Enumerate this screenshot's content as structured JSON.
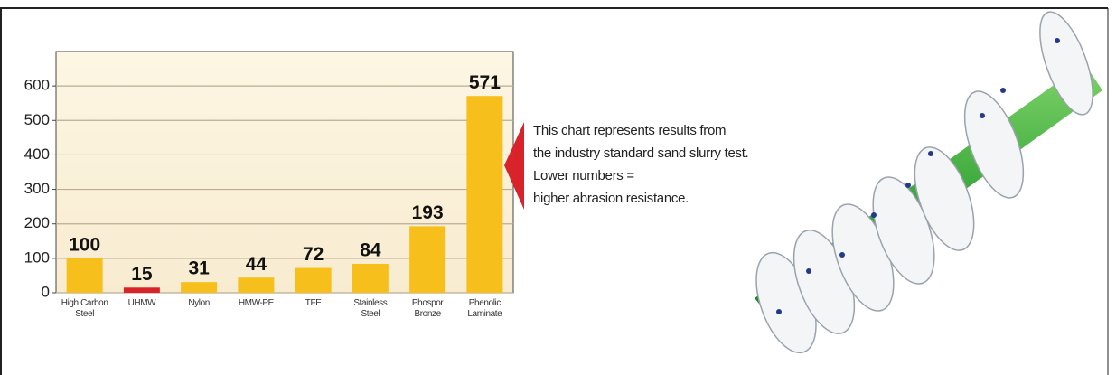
{
  "chart_data": {
    "type": "bar",
    "categories": [
      "High Carbon Steel",
      "UHMW",
      "Nylon",
      "HMW-PE",
      "TFE",
      "Stainless Steel",
      "Phospor Bronze",
      "Phenolic Laminate"
    ],
    "values": [
      100,
      15,
      31,
      44,
      72,
      84,
      193,
      571
    ],
    "colors": [
      "#f7bf1c",
      "#d8232a",
      "#f7bf1c",
      "#f7bf1c",
      "#f7bf1c",
      "#f7bf1c",
      "#f7bf1c",
      "#f7bf1c"
    ],
    "ylim": [
      0,
      700
    ],
    "yticks": [
      0,
      100,
      200,
      300,
      400,
      500,
      600
    ],
    "grid": true,
    "annotation": [
      "This chart represents results from",
      "the industry standard sand slurry test.",
      "Lower numbers =",
      "higher abrasion resistance."
    ]
  }
}
